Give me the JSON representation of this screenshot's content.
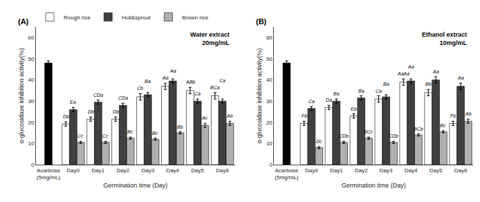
{
  "chart_data": [
    {
      "type": "bar",
      "title": "(A)",
      "annotation": "Water extract\n20mg/mL",
      "xlabel": "Germination time (Day)",
      "ylabel": "α-glucosidase inhibition activity(%)",
      "categories": [
        "Acarbose\n(5mg/mL)",
        "Day0",
        "Day1",
        "Day2",
        "Day3",
        "Day4",
        "Day5",
        "Day6"
      ],
      "ylim": [
        0,
        65
      ],
      "yticks": [
        0,
        10,
        20,
        30,
        40,
        50,
        60
      ],
      "grid": false,
      "legend": "upper left",
      "series": [
        {
          "name": "Rough rice",
          "color": "#ffffff",
          "values": [
            null,
            19.2,
            21.5,
            21.5,
            32.0,
            37.0,
            35.0,
            32.5
          ],
          "errors": [
            null,
            1.0,
            1.0,
            1.0,
            1.5,
            1.5,
            1.5,
            1.5
          ],
          "bar_labels": [
            null,
            "Db",
            "Db",
            "Db",
            "Cb",
            "Aa",
            "ABb",
            "BCa"
          ]
        },
        {
          "name": "Hull&sprout",
          "color": "#404040",
          "colors": [
            "#000000",
            "#404040",
            "#404040",
            "#404040",
            "#404040",
            "#404040",
            "#404040",
            "#404040"
          ],
          "values": [
            48.0,
            26.0,
            29.5,
            28.0,
            33.0,
            39.5,
            30.0,
            30.0
          ],
          "errors": [
            1.0,
            1.0,
            1.0,
            1.0,
            1.0,
            1.0,
            1.0,
            1.0
          ],
          "bar_labels": [
            null,
            "Ea",
            "CDa",
            "CDa",
            "Ba",
            "Aa",
            "Ca",
            "Ca"
          ]
        },
        {
          "name": "Brown rice",
          "color": "#b0b0b0",
          "values": [
            null,
            10.5,
            10.5,
            12.5,
            12.0,
            15.0,
            18.5,
            19.5
          ],
          "errors": [
            null,
            0.5,
            0.5,
            0.5,
            0.5,
            0.5,
            1.0,
            1.0
          ],
          "bar_labels": [
            null,
            "Cc",
            "Cc",
            "Bc",
            "Bc",
            "Bb",
            "Ac",
            "Ab"
          ]
        }
      ]
    },
    {
      "type": "bar",
      "title": "(B)",
      "annotation": "Ethanol extract\n10mg/mL",
      "xlabel": "Germination time (Day)",
      "ylabel": "α-glucosidase inhibition activity(%)",
      "categories": [
        "Acarbose\n(5mg/mL)",
        "Day0",
        "Day1",
        "Day2",
        "Day3",
        "Day4",
        "Day5",
        "Day6"
      ],
      "ylim": [
        0,
        65
      ],
      "yticks": [
        0,
        10,
        20,
        30,
        40,
        50,
        60
      ],
      "grid": false,
      "legend": "upper left",
      "series": [
        {
          "name": "Rough rice",
          "color": "#ffffff",
          "values": [
            null,
            19.5,
            27.0,
            23.0,
            31.0,
            39.0,
            34.0,
            19.5
          ],
          "errors": [
            null,
            1.0,
            1.0,
            1.0,
            1.5,
            1.5,
            1.5,
            1.0
          ],
          "bar_labels": [
            null,
            "Fb",
            "Da",
            "Eb",
            "Ca",
            "AaAa",
            "Bb",
            "Fb"
          ]
        },
        {
          "name": "Hull&sprout",
          "color": "#404040",
          "colors": [
            "#000000",
            "#404040",
            "#404040",
            "#404040",
            "#404040",
            "#404040",
            "#404040",
            "#404040"
          ],
          "values": [
            48.0,
            26.5,
            30.0,
            31.5,
            32.0,
            39.5,
            40.0,
            37.0
          ],
          "errors": [
            1.0,
            1.0,
            1.0,
            1.0,
            1.0,
            1.0,
            1.5,
            1.5
          ],
          "bar_labels": [
            null,
            "Ca",
            "Ba",
            "Ba",
            "Ba",
            "Aa",
            "Aa",
            "Aa"
          ]
        },
        {
          "name": "Brown rice",
          "color": "#b0b0b0",
          "values": [
            null,
            8.0,
            10.5,
            12.5,
            10.5,
            14.0,
            15.5,
            20.5
          ],
          "errors": [
            null,
            0.5,
            0.5,
            0.5,
            0.5,
            0.5,
            0.5,
            1.0
          ],
          "bar_labels": [
            null,
            "Dc",
            "CDb",
            "BCc",
            "CDb",
            "BCb",
            "Bc",
            "Ab"
          ]
        }
      ]
    }
  ]
}
